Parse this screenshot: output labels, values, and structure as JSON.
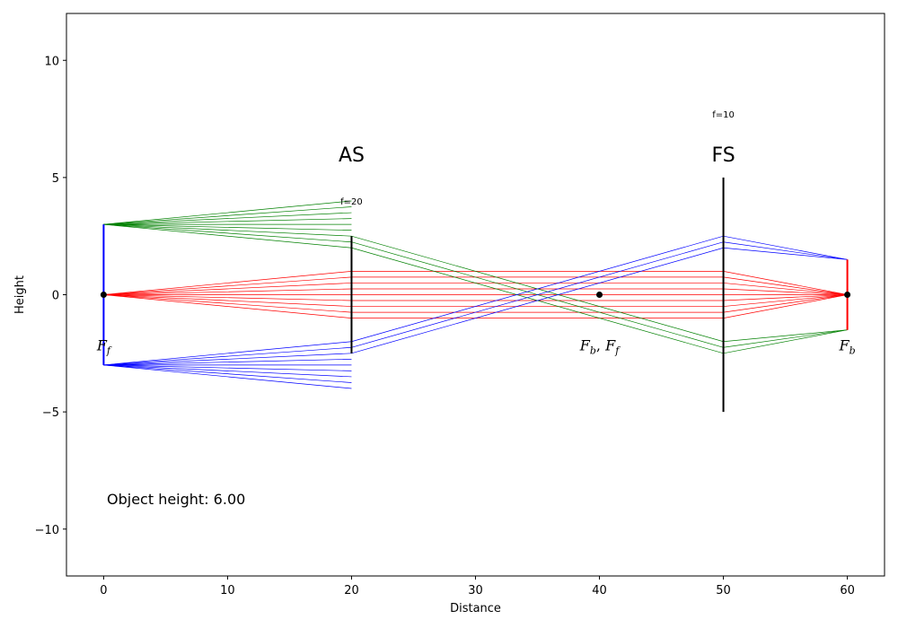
{
  "chart_data": {
    "type": "line",
    "title": "",
    "xlabel": "Distance",
    "ylabel": "Height",
    "xlim": [
      -3,
      63
    ],
    "ylim": [
      -12,
      12
    ],
    "xticks": [
      0,
      10,
      20,
      30,
      40,
      50,
      60
    ],
    "yticks": [
      -10,
      -5,
      0,
      5,
      10
    ],
    "ytick_labels": [
      "−10",
      "−5",
      "0",
      "5",
      "10"
    ],
    "grid": false,
    "elements": [
      {
        "type": "aperture-stop",
        "x": 20,
        "half_height": 2.5,
        "label": "AS",
        "focal_label": "f=20",
        "focal_length": 20
      },
      {
        "type": "field-stop",
        "x": 50,
        "half_height": 5,
        "label": "FS",
        "focal_label": "f=10",
        "focal_length": 10
      }
    ],
    "object": {
      "x": 0,
      "y_top": 3,
      "y_bottom": -3,
      "color": "#0000ff"
    },
    "image": {
      "x": 60,
      "y_top": 1.5,
      "y_bottom": -1.5,
      "color": "#ff0000"
    },
    "focal_points": [
      {
        "x": 0,
        "y": 0,
        "label_base": "F",
        "label_sub": "f"
      },
      {
        "x": 40,
        "y": 0,
        "label_base": "F",
        "label_sub": "b",
        "label_base2": "F",
        "label_sub2": "f",
        "sep": ", "
      },
      {
        "x": 60,
        "y": 0,
        "label_base": "F",
        "label_sub": "b"
      }
    ],
    "series": [
      {
        "color": "#ff0000",
        "source_y": 0,
        "ray_heights": [
          -1,
          -0.75,
          -0.5,
          -0.25,
          0,
          0.25,
          0.5,
          0.75,
          1
        ],
        "passes": true
      },
      {
        "color": "#008000",
        "source_y": 3,
        "ray_heights": [
          2,
          2.25,
          2.5
        ],
        "passes": true,
        "blocked_heights": [
          2.75,
          3,
          3.25,
          3.5,
          3.75,
          4
        ]
      },
      {
        "color": "#0000ff",
        "source_y": -3,
        "ray_heights": [
          -2.5,
          -2.25,
          -2
        ],
        "passes": true,
        "blocked_heights": [
          -2.75,
          -3,
          -3.25,
          -3.5,
          -3.75,
          -4
        ]
      }
    ],
    "annotation": "Object height: 6.00"
  }
}
